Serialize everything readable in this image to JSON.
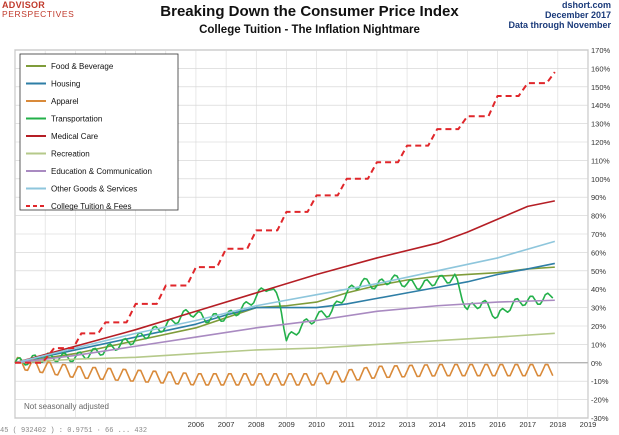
{
  "logo": {
    "line1": "ADVISOR",
    "line2": "PERSPECTIVES"
  },
  "source": {
    "site": "dshort.com",
    "date": "December 2017",
    "data_through": "Data through November"
  },
  "footer_text": "45 ( 932402 ) : 0.9751 · 66 ... 432",
  "chart_data": {
    "type": "line",
    "title": "Breaking Down the Consumer Price Index",
    "subtitle": "College Tuition  - The Inflation Nightmare",
    "note": "Not seasonally adjusted",
    "xlabel": "",
    "ylabel": "",
    "x_ticks": [
      "2006",
      "2007",
      "2008",
      "2009",
      "2010",
      "2011",
      "2012",
      "2013",
      "2014",
      "2015",
      "2016",
      "2017",
      "2018",
      "2019"
    ],
    "xlim": [
      2000.0,
      2019.0
    ],
    "ylim": [
      -30,
      170
    ],
    "y_ticks": [
      "-30%",
      "-20%",
      "-10%",
      "0%",
      "10%",
      "20%",
      "30%",
      "40%",
      "50%",
      "60%",
      "70%",
      "80%",
      "90%",
      "100%",
      "110%",
      "120%",
      "130%",
      "140%",
      "150%",
      "160%",
      "170%"
    ],
    "legend_position": "top-left",
    "series": [
      {
        "name": "Food & Beverage",
        "color": "#7f9c3a",
        "dash": "",
        "points": [
          [
            2000,
            0
          ],
          [
            2002,
            5
          ],
          [
            2004,
            12
          ],
          [
            2006,
            19
          ],
          [
            2008,
            30
          ],
          [
            2009,
            31
          ],
          [
            2010,
            33
          ],
          [
            2011,
            38
          ],
          [
            2012,
            42
          ],
          [
            2013,
            45
          ],
          [
            2014,
            47
          ],
          [
            2015,
            48
          ],
          [
            2016,
            49
          ],
          [
            2017,
            51
          ],
          [
            2017.9,
            52
          ]
        ]
      },
      {
        "name": "Housing",
        "color": "#2e7ea6",
        "dash": "",
        "points": [
          [
            2000,
            0
          ],
          [
            2002,
            7
          ],
          [
            2004,
            14
          ],
          [
            2006,
            21
          ],
          [
            2007,
            26
          ],
          [
            2008,
            30
          ],
          [
            2009,
            30
          ],
          [
            2010,
            30
          ],
          [
            2011,
            32
          ],
          [
            2012,
            35
          ],
          [
            2013,
            38
          ],
          [
            2014,
            41
          ],
          [
            2015,
            44
          ],
          [
            2016,
            48
          ],
          [
            2017,
            51
          ],
          [
            2017.9,
            54
          ]
        ]
      },
      {
        "name": "Apparel",
        "color": "#d98a3a",
        "dash": "",
        "points": [
          [
            2000,
            0
          ],
          [
            2002,
            -5
          ],
          [
            2004,
            -7
          ],
          [
            2006,
            -9
          ],
          [
            2008,
            -9
          ],
          [
            2010,
            -9
          ],
          [
            2012,
            -5
          ],
          [
            2014,
            -4
          ],
          [
            2016,
            -4
          ],
          [
            2017.9,
            -4
          ]
        ],
        "wiggle": 3.5
      },
      {
        "name": "Transportation",
        "color": "#23b04a",
        "dash": "",
        "points": [
          [
            2000,
            0
          ],
          [
            2001,
            3
          ],
          [
            2002,
            3
          ],
          [
            2003,
            7
          ],
          [
            2004,
            13
          ],
          [
            2005,
            20
          ],
          [
            2005.8,
            28
          ],
          [
            2006.3,
            24
          ],
          [
            2007,
            25
          ],
          [
            2007.6,
            30
          ],
          [
            2008.4,
            42
          ],
          [
            2008.8,
            33
          ],
          [
            2009.0,
            12
          ],
          [
            2009.5,
            20
          ],
          [
            2010,
            25
          ],
          [
            2010.5,
            28
          ],
          [
            2011,
            38
          ],
          [
            2011.5,
            44
          ],
          [
            2012,
            42
          ],
          [
            2012.5,
            46
          ],
          [
            2013,
            43
          ],
          [
            2013.5,
            42
          ],
          [
            2014,
            45
          ],
          [
            2014.6,
            46
          ],
          [
            2015,
            29
          ],
          [
            2015.5,
            33
          ],
          [
            2016,
            25
          ],
          [
            2016.5,
            32
          ],
          [
            2017,
            34
          ],
          [
            2017.5,
            34
          ],
          [
            2017.9,
            38
          ]
        ],
        "wiggle": 2.5
      },
      {
        "name": "Medical Care",
        "color": "#b51e25",
        "dash": "",
        "points": [
          [
            2000,
            0
          ],
          [
            2002,
            9
          ],
          [
            2004,
            18
          ],
          [
            2006,
            28
          ],
          [
            2008,
            38
          ],
          [
            2010,
            48
          ],
          [
            2012,
            57
          ],
          [
            2014,
            65
          ],
          [
            2015,
            71
          ],
          [
            2016,
            78
          ],
          [
            2017,
            85
          ],
          [
            2017.9,
            88
          ]
        ]
      },
      {
        "name": "Recreation",
        "color": "#b5c98a",
        "dash": "",
        "points": [
          [
            2000,
            0
          ],
          [
            2002,
            2
          ],
          [
            2004,
            3
          ],
          [
            2006,
            5
          ],
          [
            2008,
            7
          ],
          [
            2010,
            8
          ],
          [
            2012,
            10
          ],
          [
            2014,
            12
          ],
          [
            2016,
            14
          ],
          [
            2017.9,
            16
          ]
        ]
      },
      {
        "name": "Education & Communication",
        "color": "#a98ac1",
        "dash": "",
        "points": [
          [
            2000,
            0
          ],
          [
            2002,
            4
          ],
          [
            2004,
            9
          ],
          [
            2006,
            14
          ],
          [
            2008,
            19
          ],
          [
            2010,
            23
          ],
          [
            2012,
            28
          ],
          [
            2014,
            31
          ],
          [
            2016,
            33
          ],
          [
            2017.9,
            34
          ]
        ]
      },
      {
        "name": "Other Goods & Services",
        "color": "#8ec6dc",
        "dash": "",
        "points": [
          [
            2000,
            0
          ],
          [
            2002,
            8
          ],
          [
            2004,
            16
          ],
          [
            2006,
            23
          ],
          [
            2008,
            31
          ],
          [
            2010,
            37
          ],
          [
            2012,
            43
          ],
          [
            2014,
            50
          ],
          [
            2016,
            57
          ],
          [
            2017.9,
            66
          ]
        ]
      },
      {
        "name": "College Tuition & Fees",
        "color": "#e0262a",
        "dash": "6,4",
        "points": [
          [
            2000,
            0
          ],
          [
            2001.3,
            8
          ],
          [
            2002.2,
            16
          ],
          [
            2003,
            22
          ],
          [
            2004,
            32
          ],
          [
            2005,
            42
          ],
          [
            2006,
            52
          ],
          [
            2007,
            62
          ],
          [
            2008,
            72
          ],
          [
            2009,
            82
          ],
          [
            2010,
            91
          ],
          [
            2011,
            100
          ],
          [
            2012,
            109
          ],
          [
            2013,
            118
          ],
          [
            2014,
            127
          ],
          [
            2015,
            134
          ],
          [
            2016,
            145
          ],
          [
            2017,
            152
          ],
          [
            2017.9,
            158
          ]
        ],
        "steps": true
      }
    ]
  }
}
